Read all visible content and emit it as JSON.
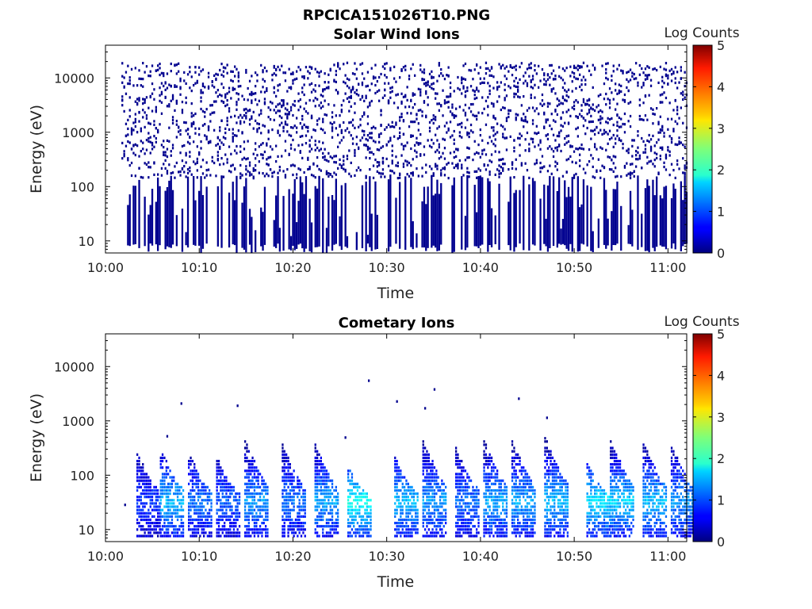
{
  "figure_title": "RPCICA151026T10.PNG",
  "chart_data": [
    {
      "type": "heatmap",
      "title": "Solar Wind Ions",
      "xlabel": "Time",
      "ylabel": "Energy (eV)",
      "x_range": [
        "10:00",
        "11:02"
      ],
      "y_range": [
        6,
        40000
      ],
      "y_scale": "log",
      "x_ticks": [
        "10:00",
        "10:10",
        "10:20",
        "10:30",
        "10:40",
        "10:50",
        "11:00"
      ],
      "y_ticks": [
        "10",
        "100",
        "1000",
        "10000"
      ],
      "colorbar": {
        "label": "Log Counts",
        "range": [
          0,
          5
        ],
        "ticks": [
          "0",
          "1",
          "2",
          "3",
          "4",
          "5"
        ],
        "colormap": "jet"
      },
      "description_values": "Sparse scattered counts at log level ~0 across 10-20000 eV throughout 10:01-11:02; denser vertical streaks below ~100 eV.",
      "dominant_log_count": 0
    },
    {
      "type": "heatmap",
      "title": "Cometary Ions",
      "xlabel": "Time",
      "ylabel": "Energy (eV)",
      "x_range": [
        "10:00",
        "11:02"
      ],
      "y_range": [
        6,
        40000
      ],
      "y_scale": "log",
      "x_ticks": [
        "10:00",
        "10:10",
        "10:20",
        "10:30",
        "10:40",
        "10:50",
        "11:00"
      ],
      "y_ticks": [
        "10",
        "100",
        "1000",
        "10000"
      ],
      "colorbar": {
        "label": "Log Counts",
        "range": [
          0,
          5
        ],
        "ticks": [
          "0",
          "1",
          "2",
          "3",
          "4",
          "5"
        ],
        "colormap": "jet"
      },
      "bursts": [
        {
          "t": 3.5,
          "emax": 250,
          "peak": 0.9
        },
        {
          "t": 6.0,
          "emax": 300,
          "peak": 1.6
        },
        {
          "t": 9.0,
          "emax": 250,
          "peak": 1.2
        },
        {
          "t": 12.0,
          "emax": 200,
          "peak": 1.1
        },
        {
          "t": 15.0,
          "emax": 450,
          "peak": 1.4
        },
        {
          "t": 19.0,
          "emax": 350,
          "peak": 1.2
        },
        {
          "t": 22.5,
          "emax": 350,
          "peak": 1.5
        },
        {
          "t": 26.0,
          "emax": 120,
          "peak": 2.0
        },
        {
          "t": 31.0,
          "emax": 200,
          "peak": 1.6
        },
        {
          "t": 34.0,
          "emax": 450,
          "peak": 1.4
        },
        {
          "t": 37.5,
          "emax": 300,
          "peak": 1.2
        },
        {
          "t": 40.5,
          "emax": 450,
          "peak": 1.5
        },
        {
          "t": 43.5,
          "emax": 450,
          "peak": 1.5
        },
        {
          "t": 47.0,
          "emax": 500,
          "peak": 1.6
        },
        {
          "t": 51.5,
          "emax": 150,
          "peak": 1.8
        },
        {
          "t": 54.0,
          "emax": 450,
          "peak": 1.7
        },
        {
          "t": 57.5,
          "emax": 400,
          "peak": 1.6
        },
        {
          "t": 60.5,
          "emax": 350,
          "peak": 1.4
        }
      ]
    }
  ],
  "colors": {
    "axis": "#000000",
    "background": "#ffffff"
  }
}
